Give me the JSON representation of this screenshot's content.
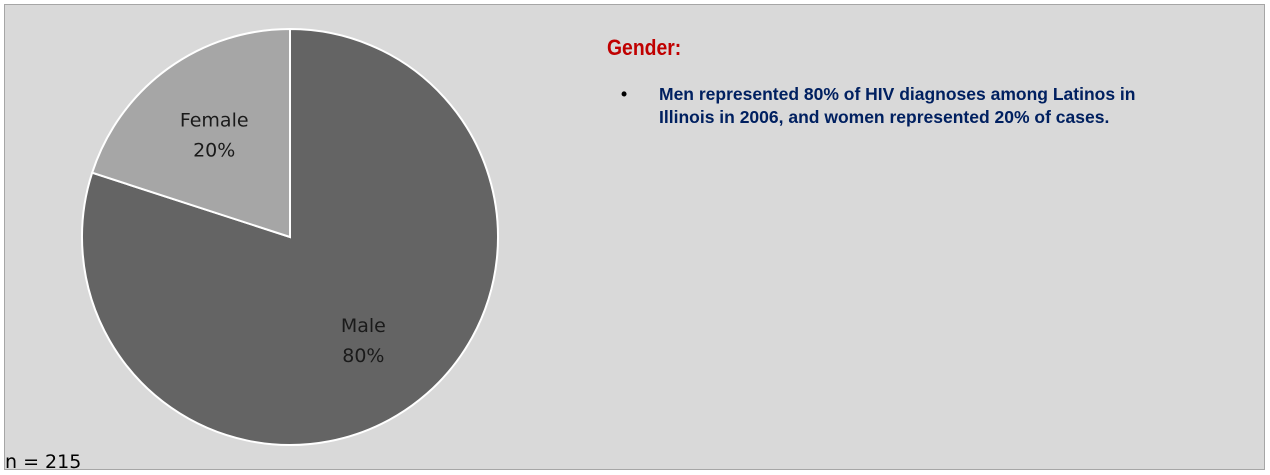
{
  "chart_data": {
    "type": "pie",
    "slices": [
      {
        "label": "Male",
        "percent_label": "80%",
        "value": 80,
        "color": "#646464"
      },
      {
        "label": "Female",
        "percent_label": "20%",
        "value": 20,
        "color": "#a6a6a6"
      }
    ],
    "sample_size": "n = 215"
  },
  "text": {
    "heading": "Gender:",
    "bullets": [
      "Men represented 80% of HIV diagnoses among Latinos in Illinois in 2006, and women represented 20% of cases."
    ],
    "bullet_symbol": "•"
  },
  "colors": {
    "background": "#d9d9d9",
    "heading": "#c00000",
    "bullet_text": "#002060"
  }
}
